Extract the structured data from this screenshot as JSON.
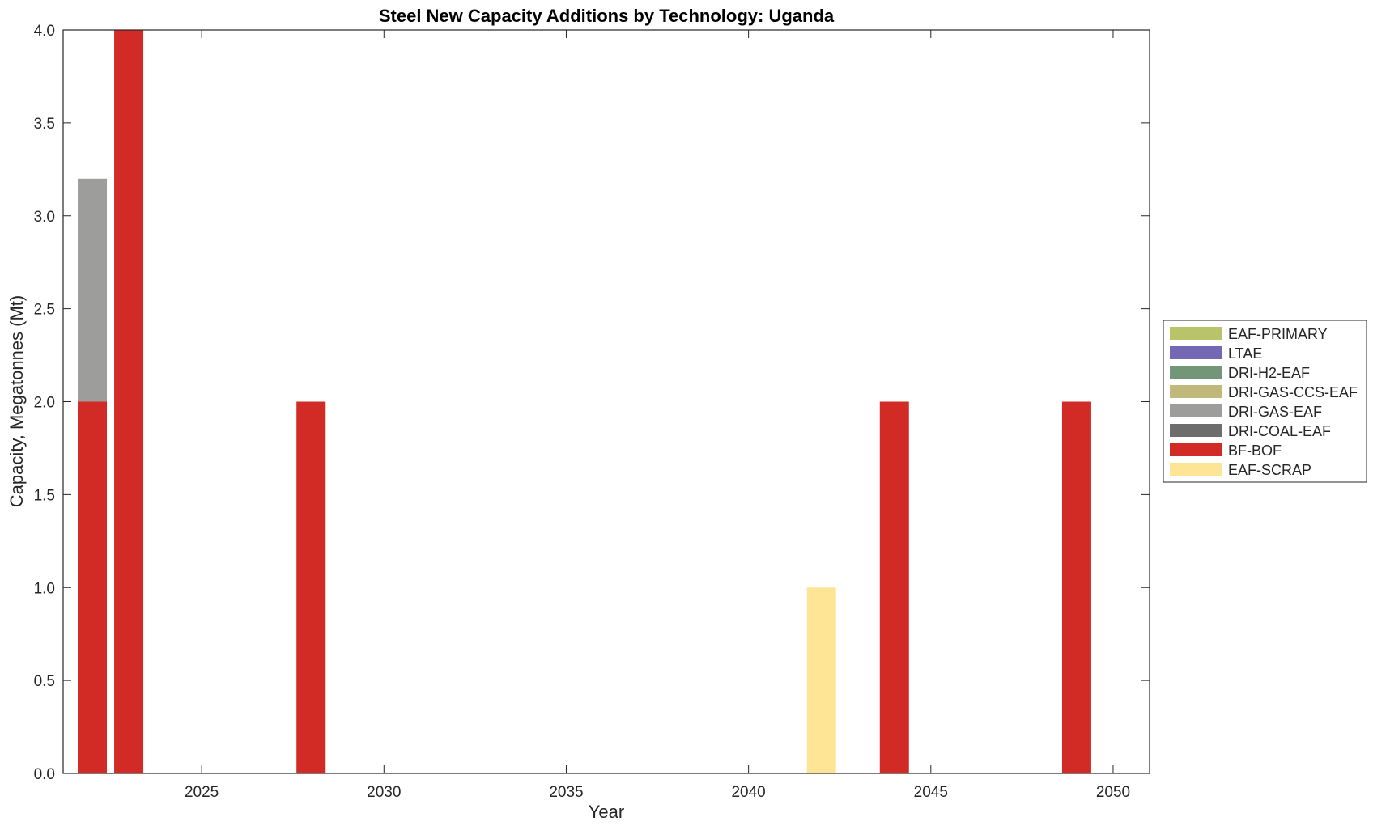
{
  "chart_data": {
    "type": "bar",
    "stacked": true,
    "title": "Steel New Capacity Additions by Technology: Uganda",
    "xlabel": "Year",
    "ylabel": "Capacity, Megatonnes (Mt)",
    "xlim": [
      2021.2,
      2051.0
    ],
    "ylim": [
      0,
      4.0
    ],
    "xticks": [
      2025,
      2030,
      2035,
      2040,
      2045,
      2050
    ],
    "yticks": [
      0.0,
      0.5,
      1.0,
      1.5,
      2.0,
      2.5,
      3.0,
      3.5,
      4.0
    ],
    "ytick_labels": [
      "0.0",
      "0.5",
      "1.0",
      "1.5",
      "2.0",
      "2.5",
      "3.0",
      "3.5",
      "4.0"
    ],
    "grid": false,
    "legend_position": "right",
    "categories": [
      2022,
      2023,
      2028,
      2042,
      2044,
      2049
    ],
    "series": [
      {
        "name": "EAF-PRIMARY",
        "color": "#b9c46a",
        "values": [
          0,
          0,
          0,
          0,
          0,
          0
        ]
      },
      {
        "name": "LTAE",
        "color": "#7468b4",
        "values": [
          0,
          0,
          0,
          0,
          0,
          0
        ]
      },
      {
        "name": "DRI-H2-EAF",
        "color": "#739678",
        "values": [
          0,
          0,
          0,
          0,
          0,
          0
        ]
      },
      {
        "name": "DRI-GAS-CCS-EAF",
        "color": "#c1b87c",
        "values": [
          0,
          0,
          0,
          0,
          0,
          0
        ]
      },
      {
        "name": "DRI-GAS-EAF",
        "color": "#9d9d9b",
        "values": [
          1.2,
          0,
          0,
          0,
          0,
          0
        ]
      },
      {
        "name": "DRI-COAL-EAF",
        "color": "#6d6d6d",
        "values": [
          0,
          0,
          0,
          0,
          0,
          0
        ]
      },
      {
        "name": "BF-BOF",
        "color": "#d22a24",
        "values": [
          2.0,
          4.0,
          2.0,
          0,
          2.0,
          2.0
        ]
      },
      {
        "name": "EAF-SCRAP",
        "color": "#fde595",
        "values": [
          0,
          0,
          0,
          1.0,
          0,
          0
        ]
      }
    ],
    "stack_order": [
      "BF-BOF",
      "DRI-GAS-EAF",
      "DRI-COAL-EAF",
      "DRI-GAS-CCS-EAF",
      "DRI-H2-EAF",
      "LTAE",
      "EAF-PRIMARY",
      "EAF-SCRAP"
    ]
  }
}
